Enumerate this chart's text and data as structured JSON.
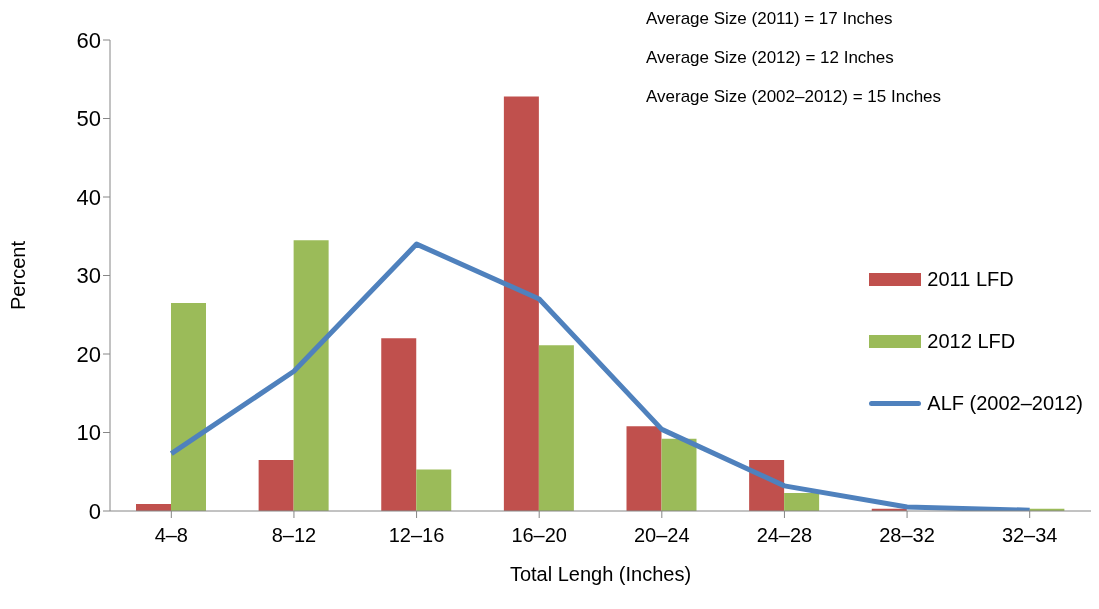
{
  "chart_data": {
    "type": "bar",
    "xlabel": "Total Lengh (Inches)",
    "ylabel": "Percent",
    "categories": [
      "4–8",
      "8–12",
      "12–16",
      "16–20",
      "20–24",
      "24–28",
      "28–32",
      "32–34"
    ],
    "series": [
      {
        "name": "2011 LFD",
        "color": "#c0504d",
        "values": [
          0.9,
          6.5,
          22,
          52.8,
          10.8,
          6.5,
          0.3,
          0
        ]
      },
      {
        "name": "2012 LFD",
        "color": "#9bbb59",
        "values": [
          26.5,
          34.5,
          5.3,
          21.1,
          9.2,
          2.3,
          0,
          0.3
        ]
      },
      {
        "name": "ALF (2002–2012)",
        "type": "line",
        "color": "#4f81bd",
        "values": [
          7.3,
          17.8,
          34,
          27,
          10.4,
          3.2,
          0.5,
          0.1
        ]
      }
    ],
    "ylim": [
      0,
      60
    ],
    "yticks": [
      0,
      10,
      20,
      30,
      40,
      50,
      60
    ],
    "grid": false,
    "legend": "right",
    "marker": "none",
    "annotations": [
      "Average Size (2011) = 17 Inches",
      "Average Size (2012) = 12 Inches",
      "Average Size (2002–2012) = 15 Inches"
    ]
  }
}
